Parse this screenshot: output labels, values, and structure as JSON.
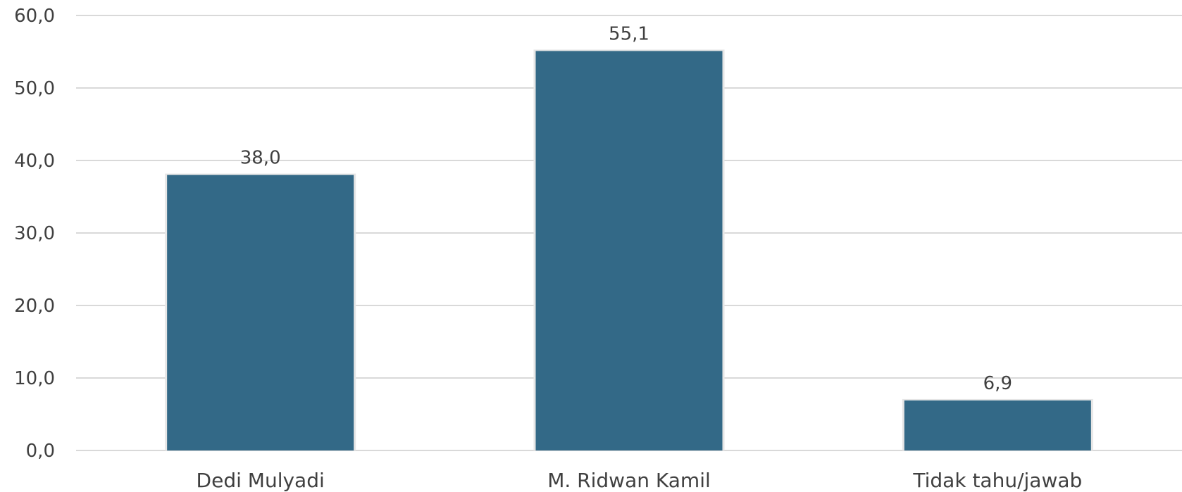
{
  "chart_data": {
    "type": "bar",
    "categories": [
      "Dedi Mulyadi",
      "M. Ridwan Kamil",
      "Tidak tahu/jawab"
    ],
    "values": [
      38.0,
      55.1,
      6.9
    ],
    "value_labels": [
      "38,0",
      "55,1",
      "6,9"
    ],
    "ylim": [
      0,
      60
    ],
    "y_ticks": [
      0,
      10,
      20,
      30,
      40,
      50,
      60
    ],
    "y_tick_labels": [
      "0,0",
      "10,0",
      "20,0",
      "30,0",
      "40,0",
      "50,0",
      "60,0"
    ],
    "grid": true,
    "legend": "none",
    "bar_color": "#336987",
    "title": "",
    "xlabel": "",
    "ylabel": ""
  }
}
